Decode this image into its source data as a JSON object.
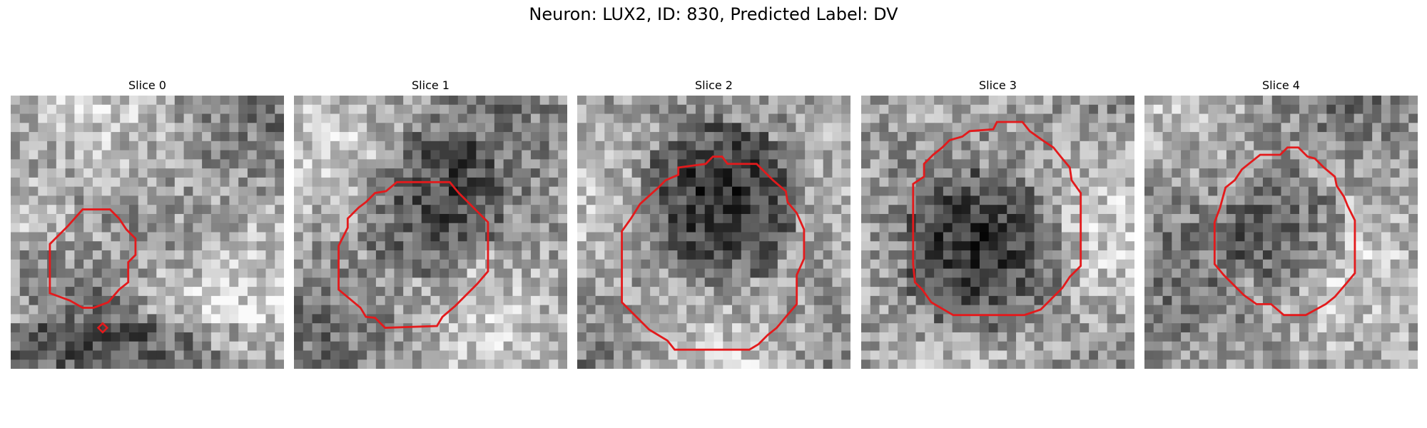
{
  "figure": {
    "title": "Neuron: LUX2, ID: 830, Predicted Label: DV"
  },
  "panels": [
    {
      "label": "Slice 0",
      "seed": 11,
      "dark_center": [
        0.66,
        0.8
      ],
      "dark_radius": 0.0,
      "bright_band": true
    },
    {
      "label": "Slice 1",
      "seed": 23,
      "dark_center": [
        0.5,
        0.4
      ],
      "dark_radius": 0.28,
      "bright_band": false
    },
    {
      "label": "Slice 2",
      "seed": 37,
      "dark_center": [
        0.52,
        0.4
      ],
      "dark_radius": 0.3,
      "bright_band": false
    },
    {
      "label": "Slice 3",
      "seed": 41,
      "dark_center": [
        0.45,
        0.58
      ],
      "dark_radius": 0.3,
      "bright_band": false
    },
    {
      "label": "Slice 4",
      "seed": 53,
      "dark_center": [
        0.52,
        0.5
      ],
      "dark_radius": 0.22,
      "bright_band": false
    }
  ],
  "contour_color": "#e31a1c",
  "image_grid": 30
}
